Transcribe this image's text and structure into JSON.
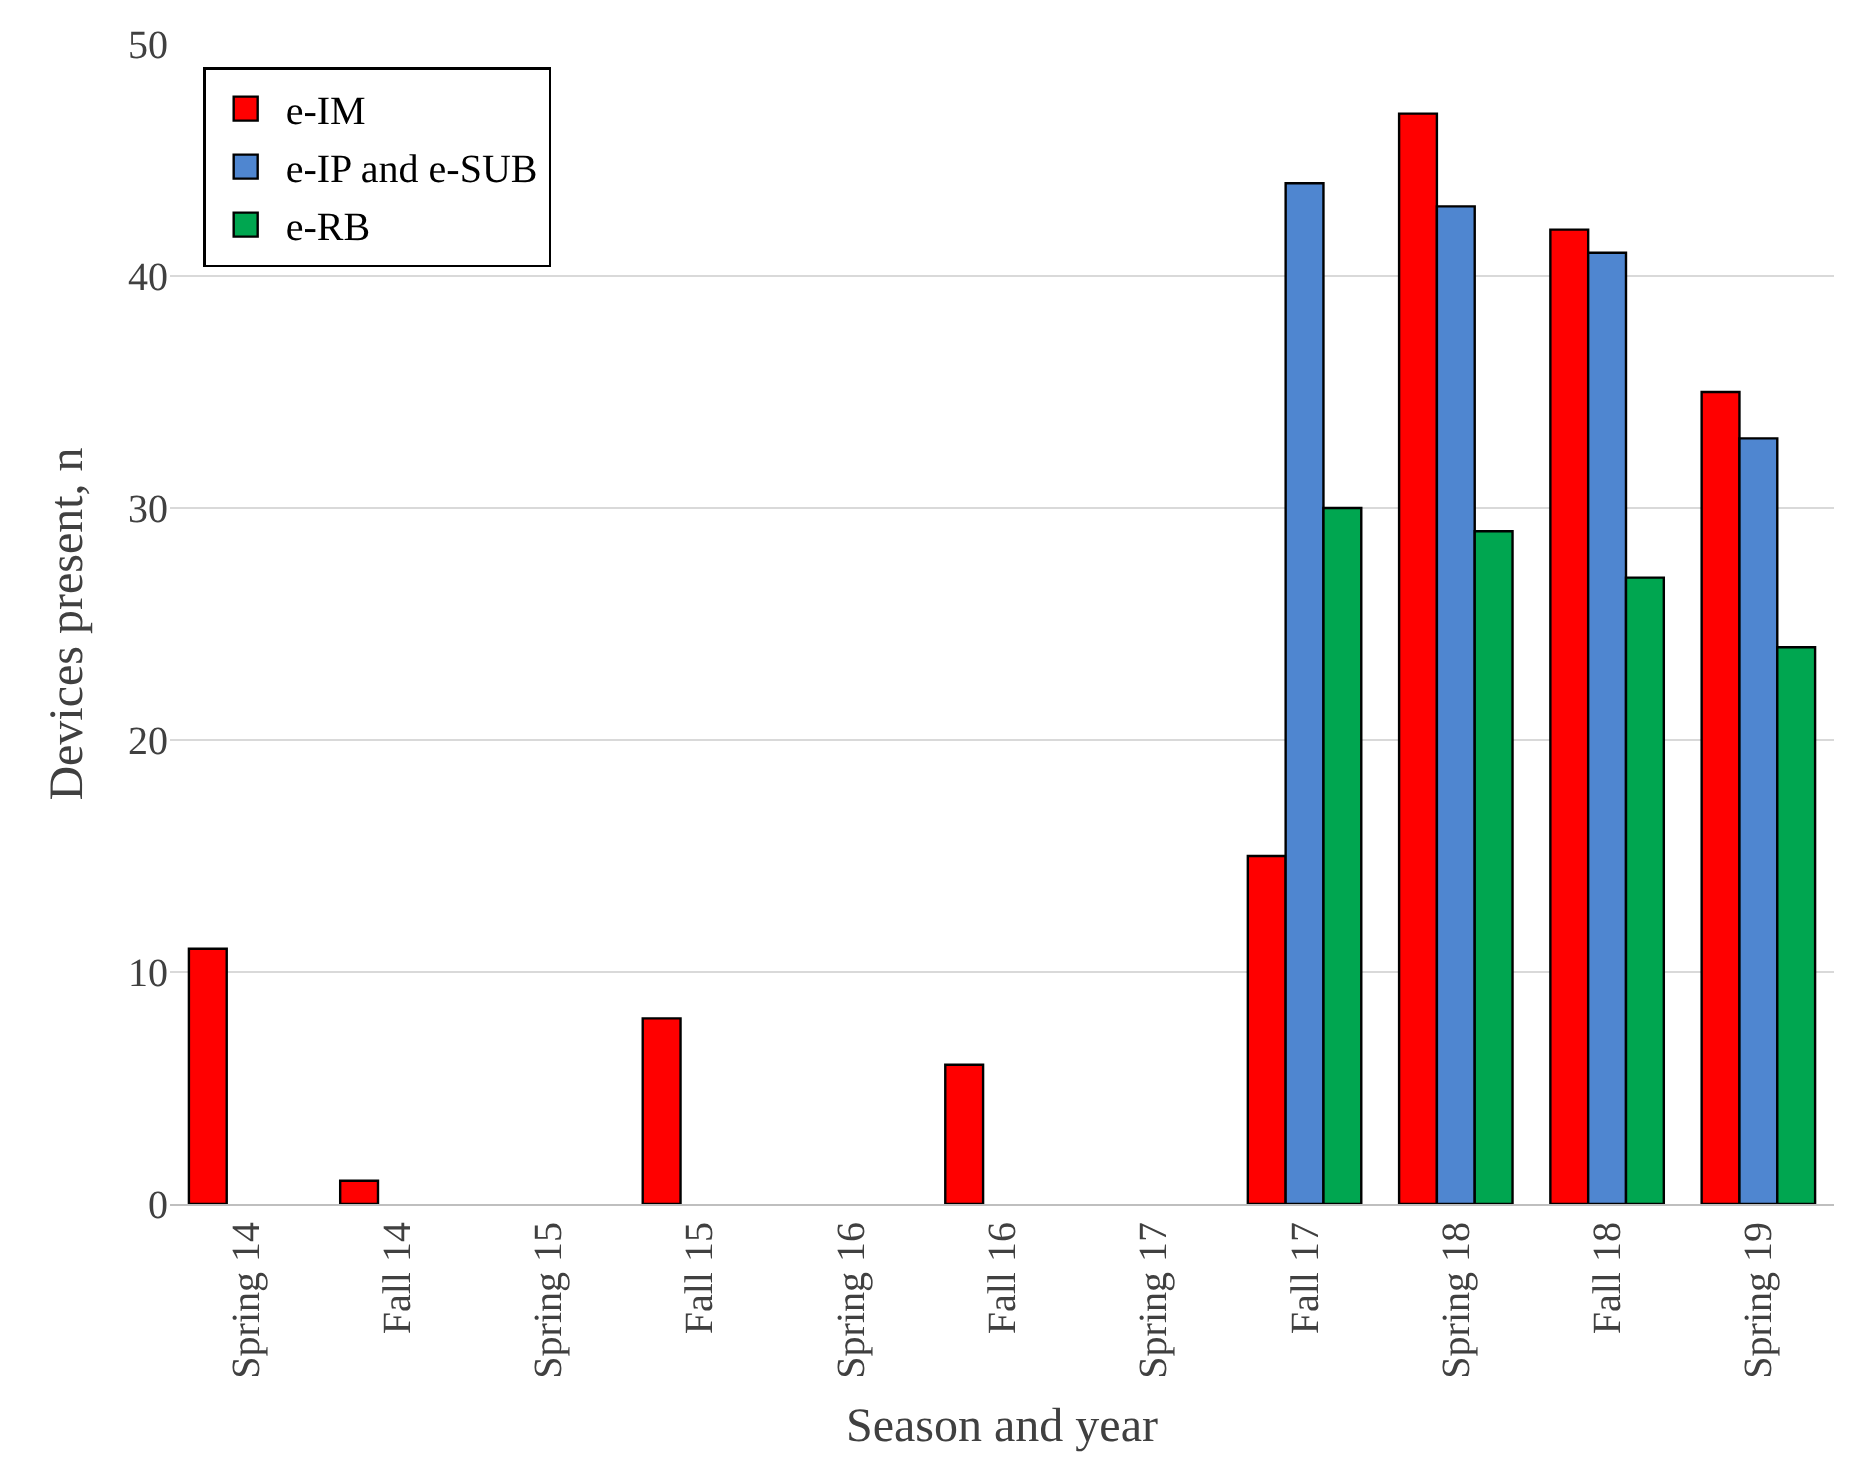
{
  "chart_data": {
    "type": "bar",
    "xlabel": "Season and year",
    "ylabel": "Devices present, n",
    "categories": [
      "Spring 14",
      "Fall 14",
      "Spring 15",
      "Fall 15",
      "Spring 16",
      "Fall 16",
      "Spring 17",
      "Fall 17",
      "Spring 18",
      "Fall 18",
      "Spring 19"
    ],
    "series": [
      {
        "name": "e-IM",
        "color": "#ff0000",
        "values": [
          11,
          1,
          null,
          8,
          null,
          6,
          null,
          15,
          47,
          42,
          35
        ]
      },
      {
        "name": "e-IP and e-SUB",
        "color": "#4f86d0",
        "values": [
          null,
          null,
          null,
          null,
          null,
          null,
          null,
          44,
          43,
          41,
          33
        ]
      },
      {
        "name": "e-RB",
        "color": "#00a650",
        "values": [
          null,
          null,
          null,
          null,
          null,
          null,
          null,
          30,
          29,
          27,
          24
        ]
      }
    ],
    "ylim": [
      0,
      50
    ],
    "yticks": [
      0,
      10,
      20,
      30,
      40,
      50
    ],
    "grid": "y",
    "legend": "top left"
  }
}
